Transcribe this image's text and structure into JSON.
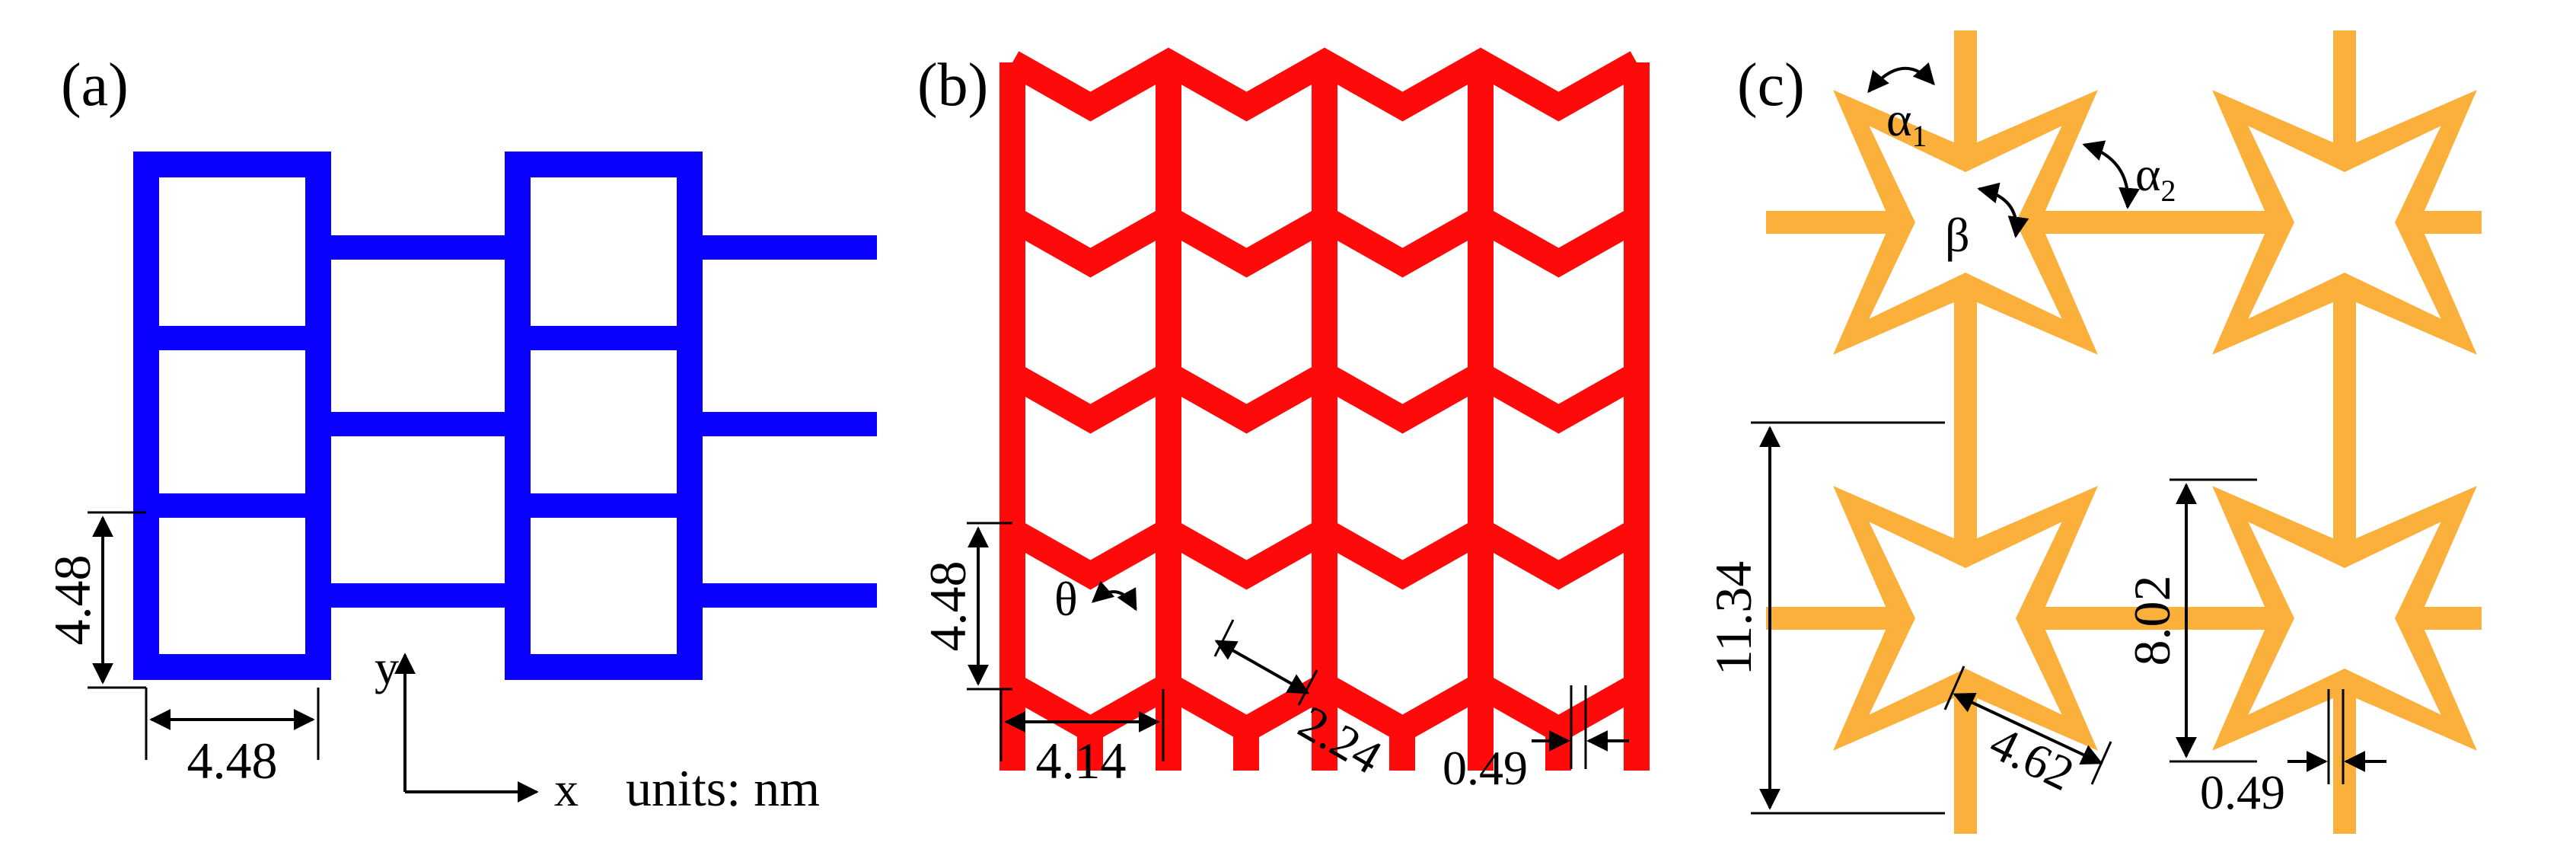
{
  "colors": {
    "panel_a": "#0a00ff",
    "panel_b": "#ff0a0a",
    "panel_c": "#fbb03b",
    "annotation": "#000000"
  },
  "panel_a": {
    "label": "(a)",
    "dim_vertical": "4.48",
    "dim_horizontal": "4.48",
    "axis_x": "x",
    "axis_y": "y",
    "units": "units: nm"
  },
  "panel_b": {
    "label": "(b)",
    "dim_vertical": "4.48",
    "dim_horizontal": "4.14",
    "dim_diagonal": "2.24",
    "dim_width": "0.49",
    "angle": "θ"
  },
  "panel_c": {
    "label": "(c)",
    "dim_outer": "11.34",
    "dim_inner": "8.02",
    "dim_diagonal": "4.62",
    "dim_width": "0.49",
    "angle_alpha1": "α",
    "angle_alpha1_sub": "1",
    "angle_alpha2": "α",
    "angle_alpha2_sub": "2",
    "angle_beta": "β"
  }
}
